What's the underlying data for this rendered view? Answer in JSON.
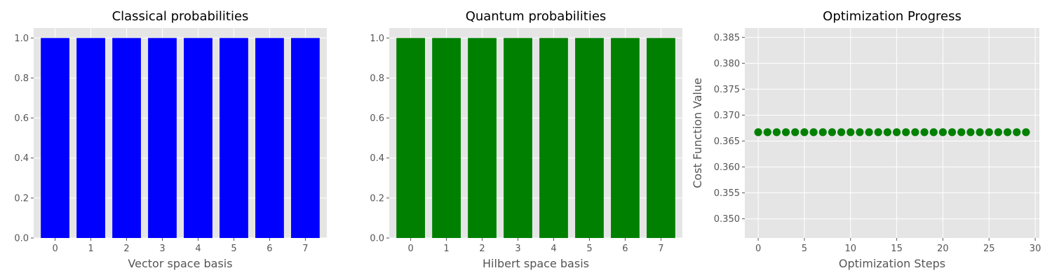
{
  "chart_data": [
    {
      "type": "bar",
      "title": "Classical probabilities",
      "xlabel": "Vector space basis",
      "ylabel": "",
      "categories": [
        "0",
        "1",
        "2",
        "3",
        "4",
        "5",
        "6",
        "7"
      ],
      "values": [
        1.0,
        1.0,
        1.0,
        1.0,
        1.0,
        1.0,
        1.0,
        1.0
      ],
      "ylim": [
        0,
        1.05
      ],
      "yticks": [
        "0.0",
        "0.2",
        "0.4",
        "0.6",
        "0.8",
        "1.0"
      ],
      "color": "#0000ff",
      "grid": true
    },
    {
      "type": "bar",
      "title": "Quantum probabilities",
      "xlabel": "Hilbert space basis",
      "ylabel": "",
      "categories": [
        "0",
        "1",
        "2",
        "3",
        "4",
        "5",
        "6",
        "7"
      ],
      "values": [
        1.0,
        1.0,
        1.0,
        1.0,
        1.0,
        1.0,
        1.0,
        1.0
      ],
      "ylim": [
        0,
        1.05
      ],
      "yticks": [
        "0.0",
        "0.2",
        "0.4",
        "0.6",
        "0.8",
        "1.0"
      ],
      "color": "#008000",
      "grid": true
    },
    {
      "type": "scatter",
      "title": "Optimization Progress",
      "xlabel": "Optimization Steps",
      "ylabel": "Cost Function Value",
      "x": [
        0,
        1,
        2,
        3,
        4,
        5,
        6,
        7,
        8,
        9,
        10,
        11,
        12,
        13,
        14,
        15,
        16,
        17,
        18,
        19,
        20,
        21,
        22,
        23,
        24,
        25,
        26,
        27,
        28,
        29
      ],
      "y": [
        0.3667,
        0.3667,
        0.3667,
        0.3667,
        0.3667,
        0.3667,
        0.3667,
        0.3667,
        0.3667,
        0.3667,
        0.3667,
        0.3667,
        0.3667,
        0.3667,
        0.3667,
        0.3667,
        0.3667,
        0.3667,
        0.3667,
        0.3667,
        0.3667,
        0.3667,
        0.3667,
        0.3667,
        0.3667,
        0.3667,
        0.3667,
        0.3667,
        0.3667,
        0.3667
      ],
      "xlim": [
        -1.45,
        30.45
      ],
      "ylim": [
        0.3463,
        0.3868
      ],
      "xticks": [
        "0",
        "5",
        "10",
        "15",
        "20",
        "25",
        "30"
      ],
      "yticks": [
        "0.350",
        "0.355",
        "0.360",
        "0.365",
        "0.370",
        "0.375",
        "0.380",
        "0.385"
      ],
      "color": "#008000",
      "grid": true
    }
  ]
}
